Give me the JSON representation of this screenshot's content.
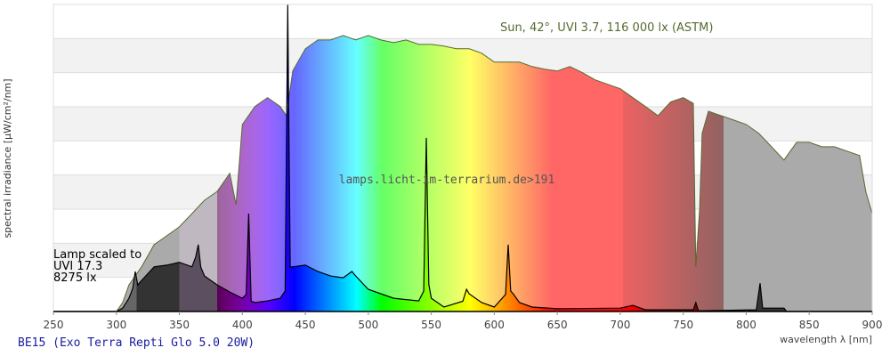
{
  "chart_data": {
    "type": "area",
    "title": "BE15 (Exo Terra Repti Glo 5.0 20W)",
    "xlabel": "wavelength λ [nm]",
    "ylabel": "spectral irradiance [µW/cm²/nm]",
    "xlim": [
      250,
      900
    ],
    "ylim": [
      0,
      9
    ],
    "xticks": [
      250,
      300,
      350,
      400,
      450,
      500,
      550,
      600,
      650,
      700,
      750,
      800,
      850,
      900
    ],
    "grid": true,
    "watermark": "lamps.licht-im-terrarium.de>191",
    "series": [
      {
        "name": "Sun, 42°, UVI 3.7, 116 000 lx (ASTM)",
        "color": "#556b2f",
        "x": [
          300,
          305,
          310,
          320,
          330,
          340,
          350,
          360,
          370,
          380,
          390,
          395,
          400,
          410,
          420,
          430,
          435,
          440,
          450,
          460,
          470,
          480,
          490,
          500,
          510,
          520,
          530,
          540,
          550,
          560,
          570,
          580,
          590,
          600,
          610,
          620,
          630,
          640,
          650,
          660,
          670,
          680,
          690,
          700,
          710,
          720,
          730,
          740,
          750,
          758,
          760,
          763,
          765,
          770,
          780,
          790,
          800,
          810,
          820,
          830,
          840,
          850,
          860,
          870,
          880,
          890,
          895,
          900
        ],
        "y": [
          0,
          0.26,
          0.78,
          1.31,
          1.96,
          2.22,
          2.48,
          2.87,
          3.26,
          3.52,
          4.05,
          3.13,
          5.48,
          6.01,
          6.27,
          6.01,
          5.74,
          7.05,
          7.7,
          7.96,
          7.96,
          8.09,
          7.96,
          8.09,
          7.96,
          7.88,
          7.96,
          7.83,
          7.83,
          7.78,
          7.7,
          7.7,
          7.57,
          7.31,
          7.31,
          7.31,
          7.18,
          7.1,
          7.05,
          7.18,
          7.0,
          6.79,
          6.66,
          6.53,
          6.27,
          6.01,
          5.74,
          6.14,
          6.27,
          6.1,
          1.31,
          3.0,
          5.22,
          5.87,
          5.74,
          5.61,
          5.48,
          5.22,
          4.83,
          4.44,
          4.96,
          4.96,
          4.83,
          4.83,
          4.7,
          4.57,
          3.5,
          2.87
        ]
      },
      {
        "name": "Lamp scaled to UVI 17.3 8275 lx",
        "label_lines": [
          "Lamp scaled to",
          "UVI 17.3",
          "8275 lx"
        ],
        "color": "#000000",
        "x": [
          250,
          300,
          305,
          310,
          313,
          315,
          317,
          320,
          330,
          340,
          350,
          360,
          363,
          365,
          367,
          370,
          380,
          390,
          400,
          403,
          405,
          407,
          410,
          420,
          430,
          434,
          436,
          438,
          440,
          450,
          460,
          470,
          480,
          487,
          490,
          500,
          520,
          540,
          544,
          546,
          548,
          550,
          560,
          575,
          578,
          580,
          590,
          600,
          609,
          611,
          613,
          615,
          620,
          630,
          650,
          700,
          710,
          720,
          758,
          760,
          762,
          808,
          811,
          813,
          830,
          832,
          900
        ],
        "y": [
          0,
          0,
          0.1,
          0.39,
          0.68,
          1.17,
          0.78,
          0.91,
          1.31,
          1.36,
          1.44,
          1.31,
          1.6,
          1.96,
          1.3,
          1.04,
          0.78,
          0.57,
          0.39,
          0.5,
          2.87,
          0.3,
          0.26,
          0.31,
          0.39,
          0.6,
          9.0,
          1.31,
          1.31,
          1.36,
          1.17,
          1.04,
          0.99,
          1.17,
          1.04,
          0.65,
          0.39,
          0.31,
          0.6,
          5.09,
          0.8,
          0.39,
          0.13,
          0.3,
          0.65,
          0.52,
          0.26,
          0.13,
          0.5,
          1.96,
          0.6,
          0.52,
          0.26,
          0.13,
          0.08,
          0.1,
          0.18,
          0.05,
          0.05,
          0.26,
          0.02,
          0.05,
          0.83,
          0.1,
          0.1,
          0,
          0
        ]
      }
    ]
  }
}
